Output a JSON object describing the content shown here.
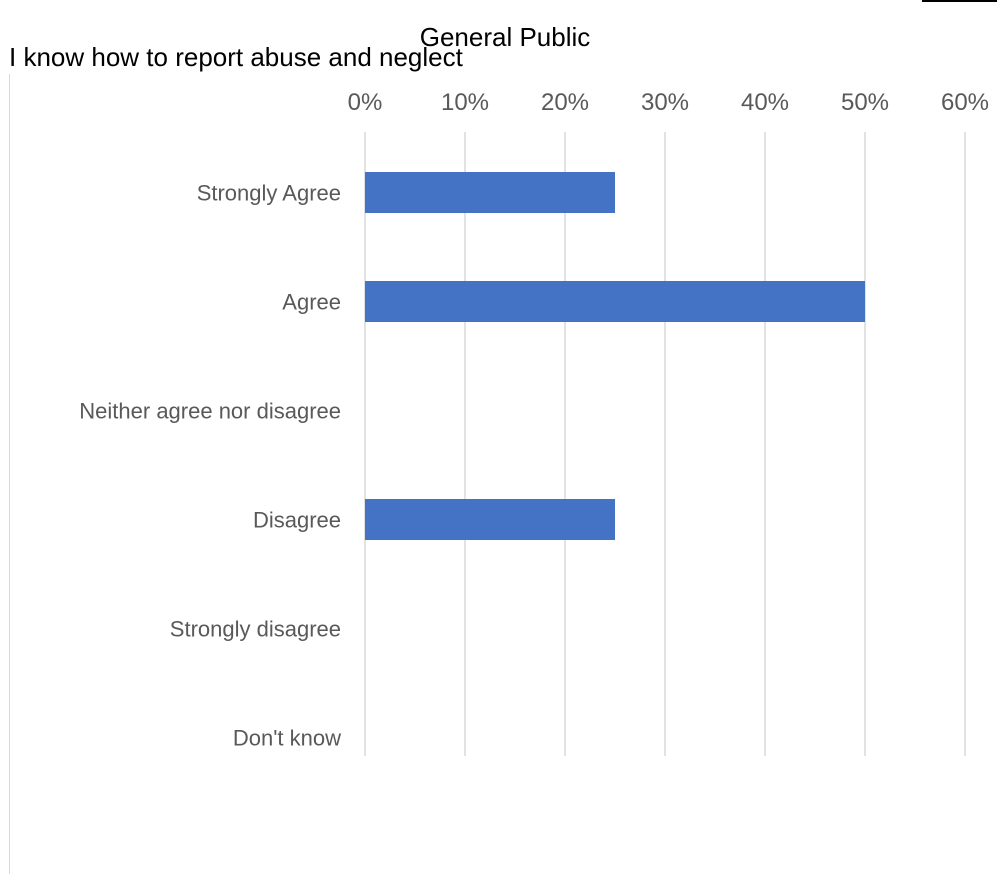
{
  "chart_data": {
    "type": "bar",
    "orientation": "horizontal",
    "title": "General Public",
    "subtitle": "I know how to report abuse and neglect",
    "xlabel": "",
    "ylabel": "",
    "categories": [
      "Strongly Agree",
      "Agree",
      "Neither agree nor disagree",
      "Disagree",
      "Strongly disagree",
      "Don't know"
    ],
    "values": [
      25,
      50,
      0,
      25,
      0,
      0
    ],
    "unit": "%",
    "xlim": [
      0,
      60
    ],
    "xticks": [
      "0%",
      "10%",
      "20%",
      "30%",
      "40%",
      "50%",
      "60%"
    ],
    "grid": true,
    "axis_position": "top",
    "bar_color": "#4472c4",
    "grid_color": "#d9d9d9"
  }
}
